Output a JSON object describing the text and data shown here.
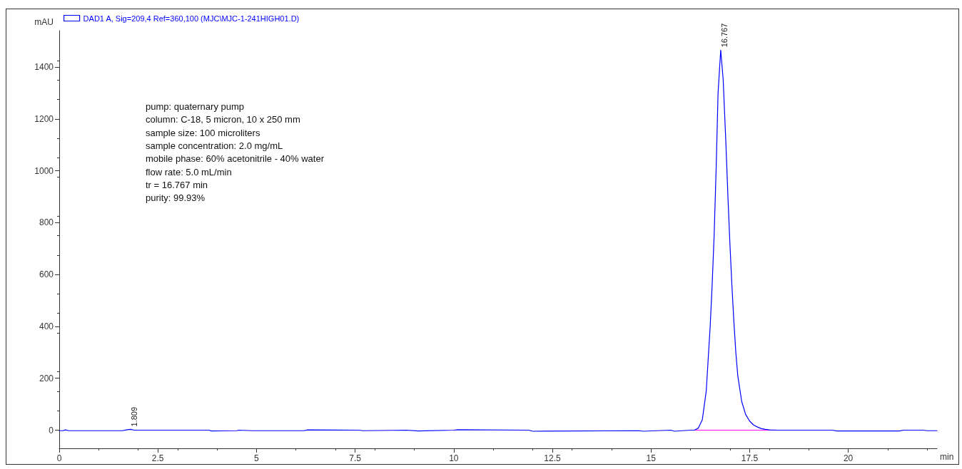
{
  "chart_data": {
    "type": "line",
    "xlabel": "min",
    "ylabel": "mAU",
    "xlim": [
      0,
      22.25
    ],
    "ylim": [
      -70,
      1540
    ],
    "xticks": [
      0,
      2.5,
      5,
      7.5,
      10,
      12.5,
      15,
      17.5,
      20
    ],
    "yticks": [
      0,
      200,
      400,
      600,
      800,
      1000,
      1200,
      1400
    ],
    "grid": false,
    "legend": "top left",
    "marker": "none",
    "line_style": "solid",
    "series": [
      {
        "name": "DAD1 A, Sig=209,4 Ref=360,100 (MJC\\MJC-1-241HIGH01.D)",
        "color": "#0000ff",
        "x": [
          0,
          0.1,
          0.15,
          0.25,
          1.6,
          1.7,
          1.809,
          1.9,
          3.8,
          3.85,
          4.5,
          4.55,
          4.9,
          6.2,
          6.3,
          7.6,
          7.7,
          8.8,
          9.1,
          10.0,
          10.1,
          11.9,
          12.0,
          14.7,
          14.8,
          15.5,
          15.6,
          16.0,
          16.1,
          16.2,
          16.3,
          16.4,
          16.5,
          16.55,
          16.6,
          16.65,
          16.7,
          16.767,
          16.83,
          16.9,
          16.95,
          17.0,
          17.05,
          17.1,
          17.15,
          17.2,
          17.3,
          17.4,
          17.5,
          17.6,
          17.7,
          17.8,
          17.9,
          18.0,
          18.2,
          19.6,
          19.7,
          21.3,
          21.4,
          21.9,
          22.0,
          22.25
        ],
        "values": [
          -2,
          -2,
          1,
          -2,
          -2,
          1,
          3,
          0,
          0,
          -3,
          -2,
          0,
          -2,
          -2,
          1,
          0,
          -2,
          0,
          -3,
          0,
          2,
          0,
          -4,
          -2,
          -4,
          0,
          -4,
          0,
          0,
          8,
          40,
          150,
          400,
          560,
          750,
          1000,
          1300,
          1465,
          1350,
          1100,
          900,
          720,
          560,
          420,
          300,
          210,
          110,
          60,
          35,
          20,
          12,
          6,
          3,
          1,
          0,
          0,
          -3,
          -3,
          0,
          0,
          -2,
          -2
        ]
      },
      {
        "color": "#ff00ff",
        "x": [
          16.05,
          18.2
        ],
        "values": [
          0,
          0
        ]
      }
    ],
    "annotations": [
      {
        "text": "16.767",
        "x": 16.767,
        "y": 1465
      },
      {
        "text": "1.809",
        "x": 1.809,
        "y": 3
      },
      "pump: quaternary pump",
      "column: C-18, 5 micron, 10 x 250 mm",
      "sample size: 100 microliters",
      "sample concentration: 2.0 mg/mL",
      "mobile phase: 60% acetonitrile - 40% water",
      "flow rate: 5.0 mL/min",
      "tr = 16.767 min",
      "purity: 99.93%"
    ]
  }
}
